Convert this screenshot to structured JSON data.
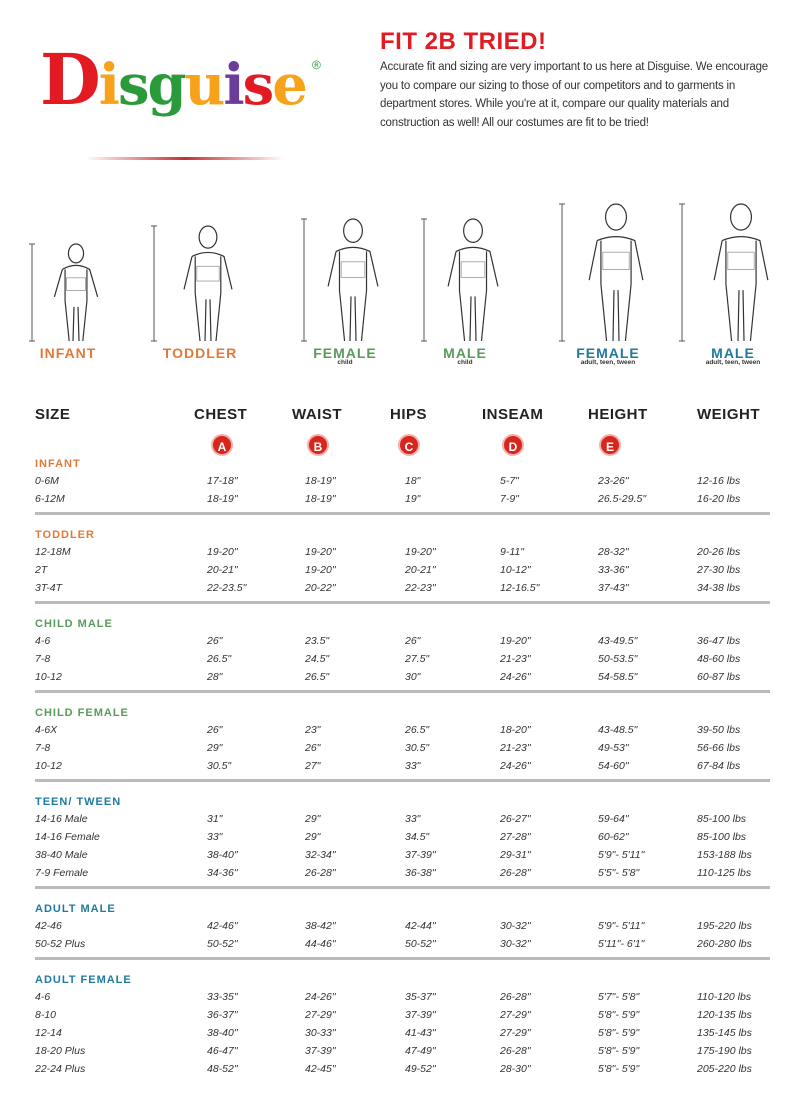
{
  "brand": {
    "logo_text": "Disguise",
    "logo_letter_colors": [
      "#e21b23",
      "#f7a21b",
      "#2a9a3a",
      "#2a9a3a",
      "#f7a21b",
      "#6a3d9a",
      "#e21b23",
      "#f7a21b"
    ],
    "registered_mark": "®"
  },
  "header": {
    "headline": "FIT 2B TRIED!",
    "intro": "Accurate fit and sizing are very important to us here at Disguise. We encourage you to compare our sizing to those of our competitors and to garments in department stores. While you're at it, compare our quality materials and construction as well! All our costumes are fit to be tried!"
  },
  "colors": {
    "accent_red": "#e21b23",
    "infant": "#e07a3a",
    "toddler": "#e07a3a",
    "child": "#5a9a5a",
    "adult": "#1f7aa0"
  },
  "figures": [
    {
      "label": "INFANT",
      "sub": "",
      "color": "#e07a3a"
    },
    {
      "label": "TODDLER",
      "sub": "",
      "color": "#e07a3a"
    },
    {
      "label": "FEMALE",
      "sub": "child",
      "color": "#5a9a5a"
    },
    {
      "label": "MALE",
      "sub": "child",
      "color": "#5a9a5a"
    },
    {
      "label": "FEMALE",
      "sub": "adult, teen, tween",
      "color": "#1f7aa0"
    },
    {
      "label": "MALE",
      "sub": "adult, teen, tween",
      "color": "#1f7aa0"
    }
  ],
  "columns": [
    {
      "label": "SIZE",
      "badge": ""
    },
    {
      "label": "CHEST",
      "badge": "A"
    },
    {
      "label": "WAIST",
      "badge": "B"
    },
    {
      "label": "HIPS",
      "badge": "C"
    },
    {
      "label": "INSEAM",
      "badge": "D"
    },
    {
      "label": "HEIGHT",
      "badge": "E"
    },
    {
      "label": "WEIGHT",
      "badge": ""
    }
  ],
  "sections": [
    {
      "title": "INFANT",
      "color": "#e07a3a",
      "rows": [
        [
          "0-6M",
          "17-18\"",
          "18-19\"",
          "18\"",
          "5-7\"",
          "23-26\"",
          "12-16 lbs"
        ],
        [
          "6-12M",
          "18-19\"",
          "18-19\"",
          "19\"",
          "7-9\"",
          "26.5-29.5\"",
          "16-20 lbs"
        ]
      ]
    },
    {
      "title": "TODDLER",
      "color": "#e07a3a",
      "rows": [
        [
          "12-18M",
          "19-20\"",
          "19-20\"",
          "19-20\"",
          "9-11\"",
          "28-32\"",
          "20-26 lbs"
        ],
        [
          "2T",
          "20-21\"",
          "19-20\"",
          "20-21\"",
          "10-12\"",
          "33-36\"",
          "27-30 lbs"
        ],
        [
          "3T-4T",
          "22-23.5\"",
          "20-22\"",
          "22-23\"",
          "12-16.5\"",
          "37-43\"",
          "34-38 lbs"
        ]
      ]
    },
    {
      "title": "CHILD MALE",
      "color": "#5a9a5a",
      "rows": [
        [
          "4-6",
          "26\"",
          "23.5\"",
          "26\"",
          "19-20\"",
          "43-49.5\"",
          "36-47 lbs"
        ],
        [
          "7-8",
          "26.5\"",
          "24.5\"",
          "27.5\"",
          "21-23\"",
          "50-53.5\"",
          "48-60 lbs"
        ],
        [
          "10-12",
          "28\"",
          "26.5\"",
          "30\"",
          "24-26\"",
          "54-58.5\"",
          "60-87 lbs"
        ]
      ]
    },
    {
      "title": "CHILD FEMALE",
      "color": "#5a9a5a",
      "rows": [
        [
          "4-6X",
          "26\"",
          "23\"",
          "26.5\"",
          "18-20\"",
          "43-48.5\"",
          "39-50 lbs"
        ],
        [
          "7-8",
          "29\"",
          "26\"",
          "30.5\"",
          "21-23\"",
          "49-53\"",
          "56-66 lbs"
        ],
        [
          "10-12",
          "30.5\"",
          "27\"",
          "33\"",
          "24-26\"",
          "54-60\"",
          "67-84 lbs"
        ]
      ]
    },
    {
      "title": "TEEN/ TWEEN",
      "color": "#1f7aa0",
      "rows": [
        [
          "14-16 Male",
          "31\"",
          "29\"",
          "33\"",
          "26-27\"",
          "59-64\"",
          "85-100 lbs"
        ],
        [
          "14-16 Female",
          "33\"",
          "29\"",
          "34.5\"",
          "27-28\"",
          "60-62\"",
          "85-100 lbs"
        ],
        [
          "38-40 Male",
          "38-40\"",
          "32-34\"",
          "37-39\"",
          "29-31\"",
          "5'9\"- 5'11\"",
          "153-188 lbs"
        ],
        [
          "7-9 Female",
          "34-36\"",
          "26-28\"",
          "36-38\"",
          "26-28\"",
          "5'5\"- 5'8\"",
          "110-125 lbs"
        ]
      ]
    },
    {
      "title": "ADULT MALE",
      "color": "#1f7aa0",
      "rows": [
        [
          "42-46",
          "42-46\"",
          "38-42\"",
          "42-44\"",
          "30-32\"",
          "5'9\"- 5'11\"",
          "195-220 lbs"
        ],
        [
          "50-52 Plus",
          "50-52\"",
          "44-46\"",
          "50-52\"",
          "30-32\"",
          "5'11\"- 6'1\"",
          "260-280 lbs"
        ]
      ]
    },
    {
      "title": "ADULT FEMALE",
      "color": "#1f7aa0",
      "rows": [
        [
          "4-6",
          "33-35\"",
          "24-26\"",
          "35-37\"",
          "26-28\"",
          "5'7\"- 5'8\"",
          "110-120 lbs"
        ],
        [
          "8-10",
          "36-37\"",
          "27-29\"",
          "37-39\"",
          "27-29\"",
          "5'8\"- 5'9\"",
          "120-135 lbs"
        ],
        [
          "12-14",
          "38-40\"",
          "30-33\"",
          "41-43\"",
          "27-29\"",
          "5'8\"- 5'9\"",
          "135-145 lbs"
        ],
        [
          "18-20 Plus",
          "46-47\"",
          "37-39\"",
          "47-49\"",
          "26-28\"",
          "5'8\"- 5'9\"",
          "175-190 lbs"
        ],
        [
          "22-24 Plus",
          "48-52\"",
          "42-45\"",
          "49-52\"",
          "28-30\"",
          "5'8\"- 5'9\"",
          "205-220 lbs"
        ]
      ]
    }
  ]
}
